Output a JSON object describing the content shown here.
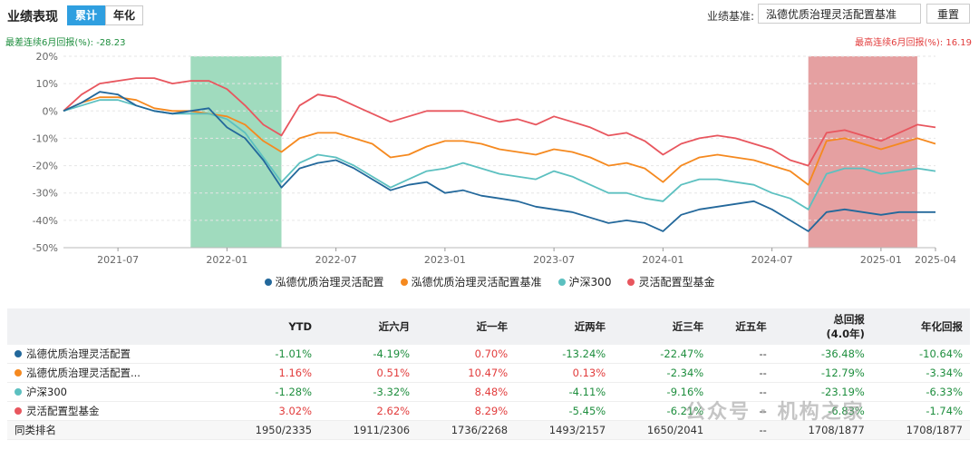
{
  "header": {
    "title": "业绩表现",
    "tabs": [
      {
        "label": "累计",
        "active": true
      },
      {
        "label": "年化",
        "active": false
      }
    ],
    "benchmark_label": "业绩基准:",
    "benchmark_value": "泓德优质治理灵活配置基准",
    "reset_label": "重置"
  },
  "worst_text": "最差连续6月回报(%): -28.23",
  "best_text": "最高连续6月回报(%): 16.19",
  "colors": {
    "fund": "#23689b",
    "bench": "#f5891f",
    "hs300": "#5cc0c0",
    "peer": "#e8565e",
    "worst_band": "#8fd5b3",
    "best_band": "#e08f90"
  },
  "chart_data": {
    "type": "line",
    "ylim": [
      -50,
      20
    ],
    "y_ticks": [
      "20%",
      "10%",
      "0%",
      "-10%",
      "-20%",
      "-30%",
      "-40%",
      "-50%"
    ],
    "x_ticks": [
      "2021-07",
      "2022-01",
      "2022-07",
      "2023-01",
      "2023-07",
      "2024-01",
      "2024-07",
      "2025-01",
      "2025-04"
    ],
    "x": [
      "2021-04",
      "2021-05",
      "2021-06",
      "2021-07",
      "2021-08",
      "2021-09",
      "2021-10",
      "2021-11",
      "2021-12",
      "2022-01",
      "2022-02",
      "2022-03",
      "2022-04",
      "2022-05",
      "2022-06",
      "2022-07",
      "2022-08",
      "2022-09",
      "2022-10",
      "2022-11",
      "2022-12",
      "2023-01",
      "2023-02",
      "2023-03",
      "2023-04",
      "2023-05",
      "2023-06",
      "2023-07",
      "2023-08",
      "2023-09",
      "2023-10",
      "2023-11",
      "2023-12",
      "2024-01",
      "2024-02",
      "2024-03",
      "2024-04",
      "2024-05",
      "2024-06",
      "2024-07",
      "2024-08",
      "2024-09",
      "2024-10",
      "2024-11",
      "2024-12",
      "2025-01",
      "2025-02",
      "2025-03",
      "2025-04"
    ],
    "series": [
      {
        "name": "泓德优质治理灵活配置",
        "color_key": "fund",
        "values": [
          0,
          3,
          7,
          6,
          2,
          0,
          -1,
          0,
          1,
          -6,
          -10,
          -18,
          -28,
          -21,
          -19,
          -18,
          -21,
          -25,
          -29,
          -27,
          -26,
          -30,
          -29,
          -31,
          -32,
          -33,
          -35,
          -36,
          -37,
          -39,
          -41,
          -40,
          -41,
          -44,
          -38,
          -36,
          -35,
          -34,
          -33,
          -36,
          -40,
          -44,
          -37,
          -36,
          -37,
          -38,
          -37,
          -37,
          -37
        ]
      },
      {
        "name": "泓德优质治理灵活配置基准",
        "color_key": "bench",
        "values": [
          0,
          3,
          5,
          5,
          4,
          1,
          0,
          0,
          -1,
          -2,
          -5,
          -11,
          -15,
          -10,
          -8,
          -8,
          -10,
          -12,
          -17,
          -16,
          -13,
          -11,
          -11,
          -12,
          -14,
          -15,
          -16,
          -14,
          -15,
          -17,
          -20,
          -19,
          -21,
          -26,
          -20,
          -17,
          -16,
          -17,
          -18,
          -20,
          -22,
          -27,
          -11,
          -10,
          -12,
          -14,
          -12,
          -10,
          -12
        ]
      },
      {
        "name": "沪深300",
        "color_key": "hs300",
        "values": [
          0,
          2,
          4,
          4,
          2,
          0,
          -1,
          -1,
          -1,
          -3,
          -8,
          -17,
          -26,
          -19,
          -16,
          -17,
          -20,
          -24,
          -28,
          -25,
          -22,
          -21,
          -19,
          -21,
          -23,
          -24,
          -25,
          -22,
          -24,
          -27,
          -30,
          -30,
          -32,
          -33,
          -27,
          -25,
          -25,
          -26,
          -27,
          -30,
          -32,
          -36,
          -23,
          -21,
          -21,
          -23,
          -22,
          -21,
          -22
        ]
      },
      {
        "name": "灵活配置型基金",
        "color_key": "peer",
        "values": [
          0,
          6,
          10,
          11,
          12,
          12,
          10,
          11,
          11,
          8,
          2,
          -5,
          -9,
          2,
          6,
          5,
          2,
          -1,
          -4,
          -2,
          0,
          0,
          0,
          -2,
          -4,
          -3,
          -5,
          -2,
          -4,
          -6,
          -9,
          -8,
          -11,
          -16,
          -12,
          -10,
          -9,
          -10,
          -12,
          -14,
          -18,
          -20,
          -8,
          -7,
          -9,
          -11,
          -8,
          -5,
          -6
        ]
      }
    ],
    "bands": [
      {
        "kind": "worst",
        "from": "2021-11",
        "to": "2022-04"
      },
      {
        "kind": "best",
        "from": "2024-09",
        "to": "2025-03"
      }
    ],
    "grid": true
  },
  "table": {
    "columns": [
      "",
      "YTD",
      "近六月",
      "近一年",
      "近两年",
      "近三年",
      "近五年",
      "总回报\n(4.0年)",
      "年化回报"
    ],
    "rows": [
      {
        "name": "泓德优质治理灵活配置",
        "color_key": "fund",
        "values": [
          "-1.01%",
          "-4.19%",
          "0.70%",
          "-13.24%",
          "-22.47%",
          "--",
          "-36.48%",
          "-10.64%"
        ]
      },
      {
        "name": "泓德优质治理灵活配置...",
        "color_key": "bench",
        "values": [
          "1.16%",
          "0.51%",
          "10.47%",
          "0.13%",
          "-2.34%",
          "--",
          "-12.79%",
          "-3.34%"
        ]
      },
      {
        "name": "沪深300",
        "color_key": "hs300",
        "values": [
          "-1.28%",
          "-3.32%",
          "8.48%",
          "-4.11%",
          "-9.16%",
          "--",
          "-23.19%",
          "-6.33%"
        ]
      },
      {
        "name": "灵活配置型基金",
        "color_key": "peer",
        "values": [
          "3.02%",
          "2.62%",
          "8.29%",
          "-5.45%",
          "-6.21%",
          "--",
          "-6.83%",
          "-1.74%"
        ]
      }
    ],
    "rank": {
      "name": "同类排名",
      "values": [
        "1950/2335",
        "1911/2306",
        "1736/2268",
        "1493/2157",
        "1650/2041",
        "--",
        "1708/1877",
        "1708/1877"
      ]
    }
  },
  "watermark": "公众号 · 机构之家"
}
